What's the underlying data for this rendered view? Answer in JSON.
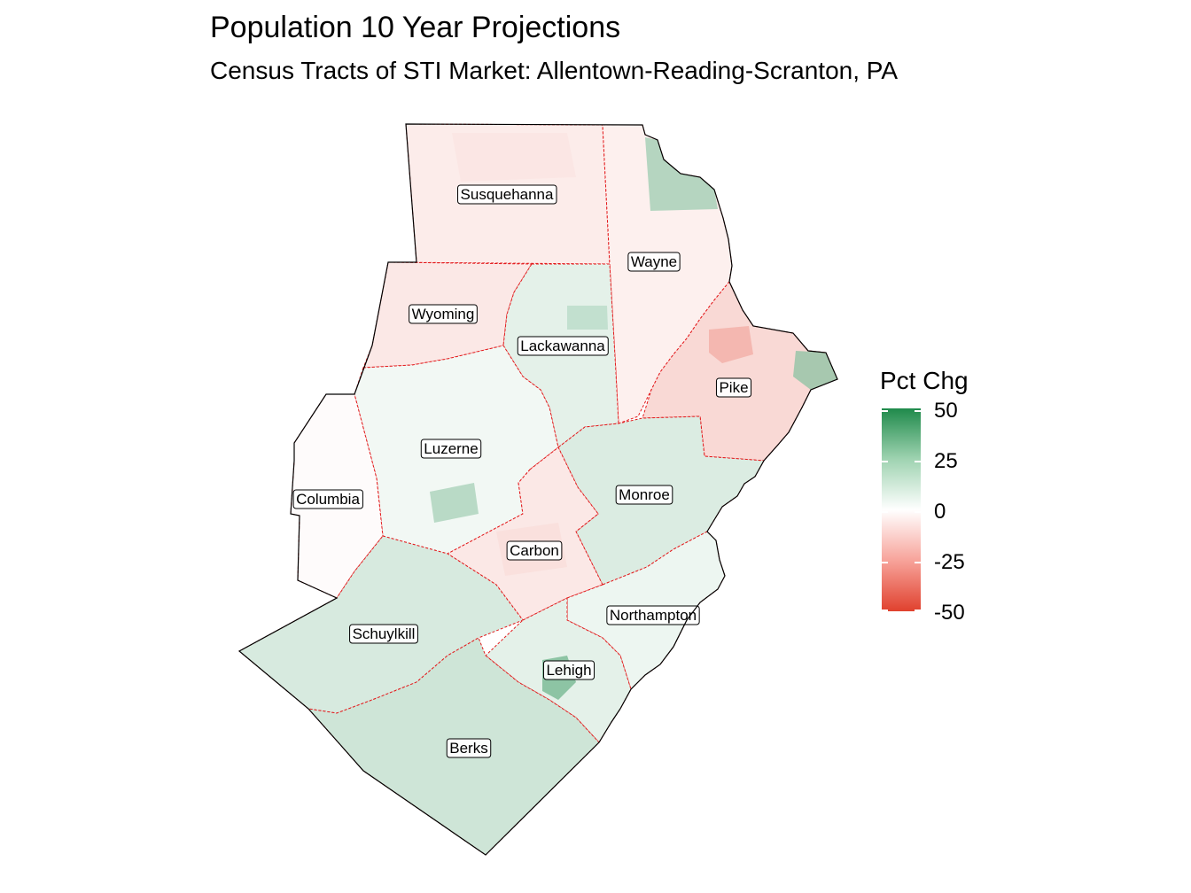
{
  "title": "Population 10 Year Projections",
  "subtitle": "Census Tracts of STI Market: Allentown-Reading-Scranton, PA",
  "legend": {
    "title": "Pct Chg",
    "ticks": [
      "50",
      "25",
      "0",
      "-25",
      "-50"
    ],
    "range": [
      -50,
      50
    ],
    "colors": {
      "high": "#1f8a4b",
      "mid": "#ffffff",
      "low": "#e0412e"
    }
  },
  "border_color": "#e31a1c",
  "counties": [
    {
      "name": "Susquehanna",
      "pct_chg": -5
    },
    {
      "name": "Wayne",
      "pct_chg": -4
    },
    {
      "name": "Wyoming",
      "pct_chg": -6
    },
    {
      "name": "Lackawanna",
      "pct_chg": 6
    },
    {
      "name": "Pike",
      "pct_chg": -10
    },
    {
      "name": "Luzerne",
      "pct_chg": 3
    },
    {
      "name": "Columbia",
      "pct_chg": -1
    },
    {
      "name": "Monroe",
      "pct_chg": 8
    },
    {
      "name": "Carbon",
      "pct_chg": -6
    },
    {
      "name": "Northampton",
      "pct_chg": 4
    },
    {
      "name": "Schuylkill",
      "pct_chg": 9
    },
    {
      "name": "Lehigh",
      "pct_chg": 6
    },
    {
      "name": "Berks",
      "pct_chg": 11
    }
  ]
}
